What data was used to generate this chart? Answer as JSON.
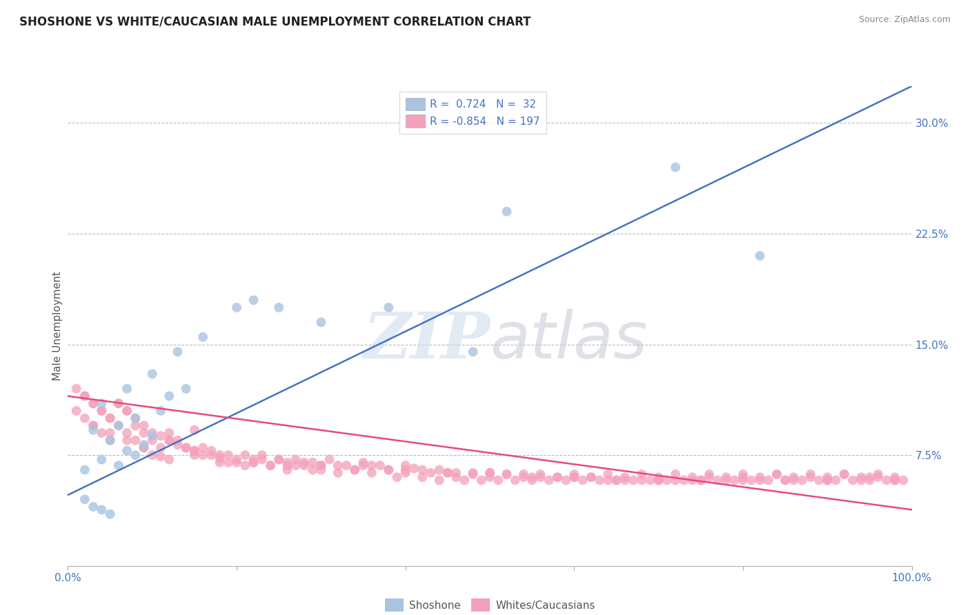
{
  "title": "SHOSHONE VS WHITE/CAUCASIAN MALE UNEMPLOYMENT CORRELATION CHART",
  "source": "Source: ZipAtlas.com",
  "ylabel": "Male Unemployment",
  "y_ticks": [
    0.075,
    0.15,
    0.225,
    0.3
  ],
  "y_tick_labels": [
    "7.5%",
    "15.0%",
    "22.5%",
    "30.0%"
  ],
  "xlim": [
    0.0,
    1.0
  ],
  "ylim": [
    0.0,
    0.325
  ],
  "shoshone_color": "#a8c4e0",
  "white_color": "#f4a0b8",
  "shoshone_line_color": "#4472c4",
  "white_line_color": "#e8497a",
  "background_color": "#ffffff",
  "shoshone_line_x0": 0.0,
  "shoshone_line_y0": 0.048,
  "shoshone_line_x1": 1.0,
  "shoshone_line_y1": 0.325,
  "white_line_x0": 0.0,
  "white_line_y0": 0.115,
  "white_line_x1": 1.0,
  "white_line_y1": 0.038,
  "shoshone_x": [
    0.02,
    0.03,
    0.04,
    0.05,
    0.02,
    0.04,
    0.06,
    0.08,
    0.05,
    0.07,
    0.09,
    0.1,
    0.03,
    0.06,
    0.08,
    0.11,
    0.12,
    0.14,
    0.04,
    0.07,
    0.1,
    0.13,
    0.16,
    0.2,
    0.22,
    0.25,
    0.3,
    0.38,
    0.48,
    0.52,
    0.72,
    0.82
  ],
  "shoshone_y": [
    0.045,
    0.04,
    0.038,
    0.035,
    0.065,
    0.072,
    0.068,
    0.075,
    0.085,
    0.078,
    0.082,
    0.088,
    0.092,
    0.095,
    0.1,
    0.105,
    0.115,
    0.12,
    0.11,
    0.12,
    0.13,
    0.145,
    0.155,
    0.175,
    0.18,
    0.175,
    0.165,
    0.175,
    0.145,
    0.24,
    0.27,
    0.21
  ],
  "white_x": [
    0.01,
    0.01,
    0.02,
    0.02,
    0.03,
    0.03,
    0.04,
    0.04,
    0.05,
    0.05,
    0.06,
    0.06,
    0.07,
    0.07,
    0.08,
    0.08,
    0.09,
    0.09,
    0.1,
    0.1,
    0.11,
    0.11,
    0.12,
    0.12,
    0.13,
    0.14,
    0.15,
    0.15,
    0.16,
    0.17,
    0.18,
    0.19,
    0.2,
    0.21,
    0.22,
    0.23,
    0.24,
    0.25,
    0.26,
    0.27,
    0.28,
    0.29,
    0.3,
    0.31,
    0.32,
    0.33,
    0.34,
    0.35,
    0.36,
    0.37,
    0.38,
    0.39,
    0.4,
    0.41,
    0.42,
    0.43,
    0.44,
    0.45,
    0.46,
    0.47,
    0.48,
    0.49,
    0.5,
    0.51,
    0.52,
    0.53,
    0.54,
    0.55,
    0.56,
    0.57,
    0.58,
    0.59,
    0.6,
    0.61,
    0.62,
    0.63,
    0.64,
    0.65,
    0.66,
    0.67,
    0.68,
    0.69,
    0.7,
    0.71,
    0.72,
    0.73,
    0.74,
    0.75,
    0.76,
    0.77,
    0.78,
    0.79,
    0.8,
    0.81,
    0.82,
    0.83,
    0.84,
    0.85,
    0.86,
    0.87,
    0.88,
    0.89,
    0.9,
    0.91,
    0.92,
    0.93,
    0.94,
    0.95,
    0.96,
    0.97,
    0.98,
    0.99,
    0.02,
    0.03,
    0.04,
    0.05,
    0.06,
    0.07,
    0.08,
    0.09,
    0.1,
    0.11,
    0.12,
    0.13,
    0.14,
    0.15,
    0.16,
    0.17,
    0.18,
    0.19,
    0.2,
    0.21,
    0.22,
    0.23,
    0.24,
    0.25,
    0.26,
    0.27,
    0.28,
    0.29,
    0.3,
    0.32,
    0.34,
    0.36,
    0.38,
    0.4,
    0.42,
    0.44,
    0.46,
    0.48,
    0.5,
    0.52,
    0.54,
    0.56,
    0.58,
    0.6,
    0.62,
    0.64,
    0.66,
    0.68,
    0.7,
    0.72,
    0.74,
    0.76,
    0.78,
    0.8,
    0.82,
    0.84,
    0.86,
    0.88,
    0.9,
    0.92,
    0.94,
    0.96,
    0.98,
    0.03,
    0.05,
    0.07,
    0.09,
    0.12,
    0.15,
    0.18,
    0.22,
    0.26,
    0.3,
    0.35,
    0.4,
    0.45,
    0.5,
    0.55,
    0.6,
    0.65,
    0.7,
    0.75,
    0.8,
    0.85,
    0.9,
    0.95,
    0.98
  ],
  "white_y": [
    0.12,
    0.105,
    0.115,
    0.1,
    0.11,
    0.095,
    0.105,
    0.09,
    0.1,
    0.085,
    0.11,
    0.095,
    0.105,
    0.09,
    0.1,
    0.085,
    0.095,
    0.08,
    0.09,
    0.075,
    0.088,
    0.074,
    0.085,
    0.072,
    0.082,
    0.08,
    0.078,
    0.092,
    0.075,
    0.078,
    0.073,
    0.07,
    0.072,
    0.068,
    0.07,
    0.075,
    0.068,
    0.072,
    0.065,
    0.068,
    0.07,
    0.065,
    0.068,
    0.072,
    0.063,
    0.068,
    0.065,
    0.07,
    0.063,
    0.068,
    0.065,
    0.06,
    0.063,
    0.066,
    0.06,
    0.063,
    0.058,
    0.063,
    0.06,
    0.058,
    0.062,
    0.058,
    0.06,
    0.058,
    0.062,
    0.058,
    0.06,
    0.058,
    0.062,
    0.058,
    0.06,
    0.058,
    0.062,
    0.058,
    0.06,
    0.058,
    0.062,
    0.058,
    0.06,
    0.058,
    0.062,
    0.058,
    0.06,
    0.058,
    0.062,
    0.058,
    0.06,
    0.058,
    0.062,
    0.058,
    0.06,
    0.058,
    0.062,
    0.058,
    0.06,
    0.058,
    0.062,
    0.058,
    0.06,
    0.058,
    0.062,
    0.058,
    0.06,
    0.058,
    0.062,
    0.058,
    0.06,
    0.058,
    0.062,
    0.058,
    0.06,
    0.058,
    0.115,
    0.11,
    0.105,
    0.1,
    0.11,
    0.105,
    0.095,
    0.09,
    0.085,
    0.08,
    0.09,
    0.085,
    0.08,
    0.075,
    0.08,
    0.075,
    0.07,
    0.075,
    0.07,
    0.075,
    0.07,
    0.072,
    0.068,
    0.072,
    0.068,
    0.072,
    0.068,
    0.07,
    0.065,
    0.068,
    0.065,
    0.068,
    0.065,
    0.068,
    0.065,
    0.065,
    0.063,
    0.063,
    0.063,
    0.062,
    0.062,
    0.06,
    0.06,
    0.06,
    0.06,
    0.058,
    0.058,
    0.058,
    0.058,
    0.058,
    0.058,
    0.06,
    0.058,
    0.06,
    0.058,
    0.062,
    0.058,
    0.06,
    0.058,
    0.062,
    0.058,
    0.06,
    0.058,
    0.095,
    0.09,
    0.085,
    0.08,
    0.085,
    0.078,
    0.075,
    0.072,
    0.07,
    0.068,
    0.068,
    0.065,
    0.063,
    0.063,
    0.06,
    0.06,
    0.058,
    0.058,
    0.058,
    0.058,
    0.058,
    0.058,
    0.06,
    0.058
  ]
}
